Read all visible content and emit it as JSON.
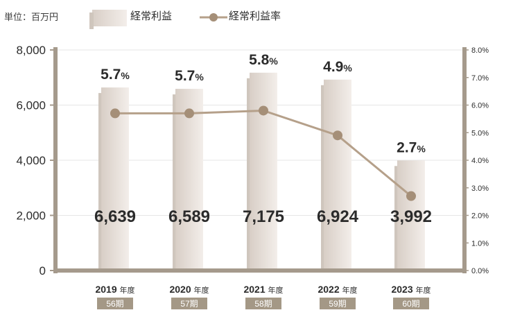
{
  "unit_label": "単位：百万円",
  "colors": {
    "axis": "#a59a8c",
    "bar_light": "#f3eeea",
    "bar_dark": "#d8cec6",
    "line": "#b5a08a",
    "marker": "#a58f78",
    "grid": "#e6e6e6",
    "text": "#2b2b2b",
    "badge_bg": "#a49886",
    "badge_text": "#ffffff"
  },
  "chart_data": {
    "type": "bar",
    "categories": [
      "2019",
      "2020",
      "2021",
      "2022",
      "2023"
    ],
    "category_suffix": "年度",
    "period_labels": [
      "56期",
      "57期",
      "58期",
      "59期",
      "60期"
    ],
    "series": [
      {
        "name": "経常利益",
        "type": "bar",
        "axis": "left",
        "values": [
          6639,
          6589,
          7175,
          6924,
          3992
        ],
        "value_labels": [
          "6,639",
          "6,589",
          "7,175",
          "6,924",
          "3,992"
        ]
      },
      {
        "name": "経常利益率",
        "type": "line",
        "axis": "right",
        "values": [
          5.7,
          5.7,
          5.8,
          4.9,
          2.7
        ],
        "value_labels": [
          "5.7",
          "5.7",
          "5.8",
          "4.9",
          "2.7"
        ],
        "value_suffix": "%"
      }
    ],
    "y_left": {
      "ylim": [
        0,
        8000
      ],
      "ticks": [
        "0",
        "2,000",
        "4,000",
        "6,000",
        "8,000"
      ]
    },
    "y_right": {
      "ylim": [
        0,
        8
      ],
      "ticks": [
        "0.0%",
        "1.0%",
        "2.0%",
        "3.0%",
        "4.0%",
        "5.0%",
        "6.0%",
        "7.0%",
        "8.0%"
      ]
    },
    "grid": true,
    "legend_position": "top"
  }
}
